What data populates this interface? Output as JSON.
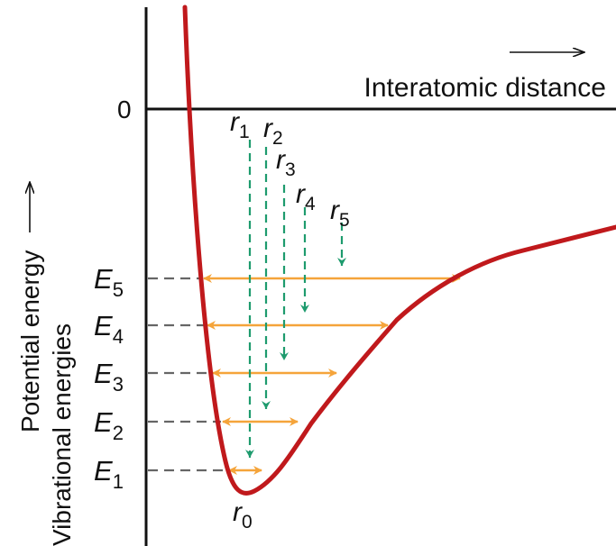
{
  "axes": {
    "x_label": "Interatomic distance",
    "y_label_line1": "Potential energy",
    "y_label_line2": "Vibrational energies",
    "zero_label": "0"
  },
  "levels": [
    {
      "sym": "E",
      "sub": "1"
    },
    {
      "sym": "E",
      "sub": "2"
    },
    {
      "sym": "E",
      "sub": "3"
    },
    {
      "sym": "E",
      "sub": "4"
    },
    {
      "sym": "E",
      "sub": "5"
    }
  ],
  "distances": [
    {
      "sym": "r",
      "sub": "1"
    },
    {
      "sym": "r",
      "sub": "2"
    },
    {
      "sym": "r",
      "sub": "3"
    },
    {
      "sym": "r",
      "sub": "4"
    },
    {
      "sym": "r",
      "sub": "5"
    }
  ],
  "equilibrium": {
    "sym": "r",
    "sub": "0"
  },
  "colors": {
    "curve": "#c0191c",
    "level_arrow": "#f5a43a",
    "distance_marker": "#1e9b6e",
    "dashed_guide": "#666666",
    "axis": "#111111"
  }
}
